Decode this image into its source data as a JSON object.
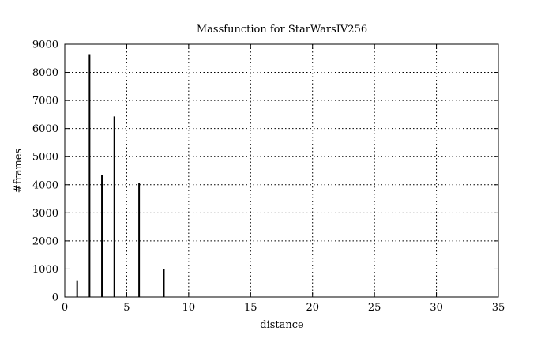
{
  "chart_data": {
    "type": "bar",
    "title": "Massfunction for StarWarsIV256",
    "xlabel": "distance",
    "ylabel": "#frames",
    "xlim": [
      0,
      35
    ],
    "ylim": [
      0,
      9000
    ],
    "xticks": [
      0,
      5,
      10,
      15,
      20,
      25,
      30,
      35
    ],
    "yticks": [
      0,
      1000,
      2000,
      3000,
      4000,
      5000,
      6000,
      7000,
      8000,
      9000
    ],
    "grid": true,
    "bar_style": "impulse",
    "series": [
      {
        "points": [
          {
            "x": 1,
            "y": 600
          },
          {
            "x": 2,
            "y": 8650
          },
          {
            "x": 3,
            "y": 4330
          },
          {
            "x": 4,
            "y": 6430
          },
          {
            "x": 6,
            "y": 4050
          },
          {
            "x": 8,
            "y": 1010
          }
        ]
      }
    ],
    "colors": {
      "bars": "#000000",
      "grid": "#000000",
      "frame": "#000000"
    }
  }
}
